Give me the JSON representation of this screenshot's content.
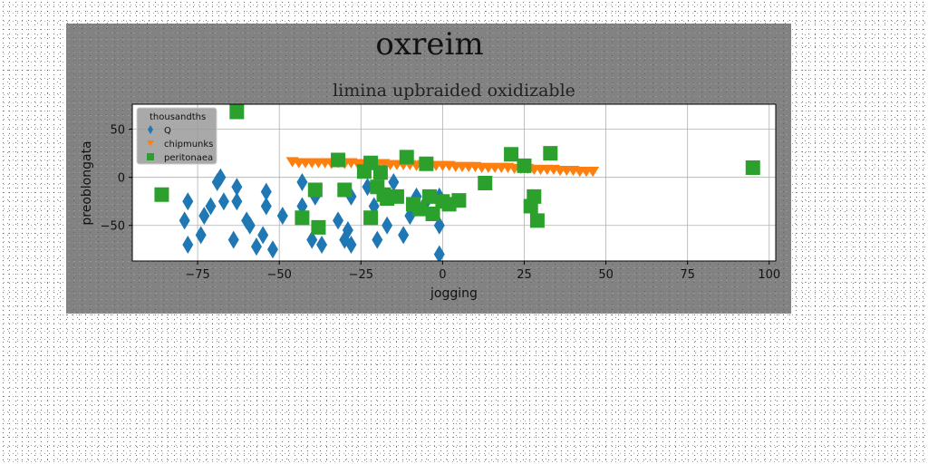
{
  "chart_data": {
    "type": "scatter",
    "title": "oxreim",
    "subtitle": "limina upbraided oxidizable",
    "xlabel": "jogging",
    "ylabel": "preoblongata",
    "xlim": [
      -95,
      102
    ],
    "ylim": [
      -87,
      76
    ],
    "xticks": [
      -75,
      -50,
      -25,
      0,
      25,
      50,
      75,
      100
    ],
    "xtick_labels": [
      "−75",
      "−50",
      "−25",
      "0",
      "25",
      "50",
      "75",
      "100"
    ],
    "yticks": [
      50,
      0,
      -50
    ],
    "ytick_labels": [
      "50",
      "0",
      "−50"
    ],
    "grid": true,
    "legend": {
      "title": "thousandths",
      "placement": "upper-left"
    },
    "series": [
      {
        "name": "Q",
        "marker": "diamond",
        "color": "#1f77b4",
        "points": [
          [
            -78,
            -25
          ],
          [
            -79,
            -45
          ],
          [
            -78,
            -70
          ],
          [
            -74,
            -60
          ],
          [
            -73,
            -40
          ],
          [
            -71,
            -30
          ],
          [
            -69,
            -5
          ],
          [
            -68,
            0
          ],
          [
            -67,
            -25
          ],
          [
            -64,
            -65
          ],
          [
            -63,
            -10
          ],
          [
            -63,
            -25
          ],
          [
            -60,
            -45
          ],
          [
            -59,
            -50
          ],
          [
            -57,
            -72
          ],
          [
            -55,
            -60
          ],
          [
            -54,
            -30
          ],
          [
            -54,
            -15
          ],
          [
            -52,
            -75
          ],
          [
            -49,
            -40
          ],
          [
            -43,
            -5
          ],
          [
            -43,
            -30
          ],
          [
            -40,
            -65
          ],
          [
            -39,
            -20
          ],
          [
            -37,
            -70
          ],
          [
            -32,
            -45
          ],
          [
            -30,
            -65
          ],
          [
            -29,
            -55
          ],
          [
            -28,
            -70
          ],
          [
            -28,
            -20
          ],
          [
            -23,
            -10
          ],
          [
            -21,
            -30
          ],
          [
            -20,
            -65
          ],
          [
            -17,
            -50
          ],
          [
            -15,
            -5
          ],
          [
            -12,
            -60
          ],
          [
            -10,
            -40
          ],
          [
            -8,
            -20
          ],
          [
            -5,
            -25
          ],
          [
            -1,
            -20
          ],
          [
            -1,
            -50
          ],
          [
            -1,
            -80
          ]
        ]
      },
      {
        "name": "chipmunks",
        "marker": "triangle-down",
        "color": "#ff7f0e",
        "points": [
          [
            -46,
            16
          ],
          [
            -44,
            15
          ],
          [
            -42,
            15
          ],
          [
            -40,
            15
          ],
          [
            -38,
            15
          ],
          [
            -36,
            15
          ],
          [
            -34,
            14
          ],
          [
            -32,
            15
          ],
          [
            -30,
            14
          ],
          [
            -28,
            15
          ],
          [
            -26,
            14
          ],
          [
            -24,
            14
          ],
          [
            -22,
            14
          ],
          [
            -20,
            13
          ],
          [
            -18,
            14
          ],
          [
            -16,
            13
          ],
          [
            -14,
            13
          ],
          [
            -12,
            13
          ],
          [
            -10,
            13
          ],
          [
            -8,
            12
          ],
          [
            -6,
            13
          ],
          [
            -4,
            12
          ],
          [
            -2,
            12
          ],
          [
            0,
            12
          ],
          [
            2,
            12
          ],
          [
            4,
            11
          ],
          [
            6,
            11
          ],
          [
            8,
            11
          ],
          [
            10,
            11
          ],
          [
            12,
            10
          ],
          [
            14,
            10
          ],
          [
            16,
            10
          ],
          [
            18,
            10
          ],
          [
            20,
            10
          ],
          [
            22,
            9
          ],
          [
            24,
            9
          ],
          [
            26,
            9
          ],
          [
            28,
            8
          ],
          [
            30,
            8
          ],
          [
            32,
            8
          ],
          [
            34,
            8
          ],
          [
            36,
            7
          ],
          [
            38,
            7
          ],
          [
            40,
            7
          ],
          [
            42,
            6
          ],
          [
            44,
            6
          ],
          [
            46,
            6
          ]
        ]
      },
      {
        "name": "peritonaea",
        "marker": "square",
        "color": "#2ca02c",
        "points": [
          [
            -86,
            -18
          ],
          [
            -63,
            68
          ],
          [
            -43,
            -42
          ],
          [
            -39,
            -13
          ],
          [
            -38,
            -52
          ],
          [
            -32,
            18
          ],
          [
            -30,
            -13
          ],
          [
            -24,
            6
          ],
          [
            -22,
            -42
          ],
          [
            -22,
            15
          ],
          [
            -20,
            -10
          ],
          [
            -19,
            5
          ],
          [
            -18,
            -18
          ],
          [
            -17,
            -22
          ],
          [
            -14,
            -20
          ],
          [
            -11,
            21
          ],
          [
            -9,
            -28
          ],
          [
            -7,
            -33
          ],
          [
            -5,
            14
          ],
          [
            -4,
            -20
          ],
          [
            -3,
            -38
          ],
          [
            0,
            -25
          ],
          [
            2,
            -28
          ],
          [
            5,
            -24
          ],
          [
            13,
            -6
          ],
          [
            21,
            24
          ],
          [
            25,
            12
          ],
          [
            27,
            -30
          ],
          [
            28,
            -20
          ],
          [
            29,
            -45
          ],
          [
            33,
            25
          ],
          [
            95,
            10
          ]
        ]
      }
    ]
  }
}
